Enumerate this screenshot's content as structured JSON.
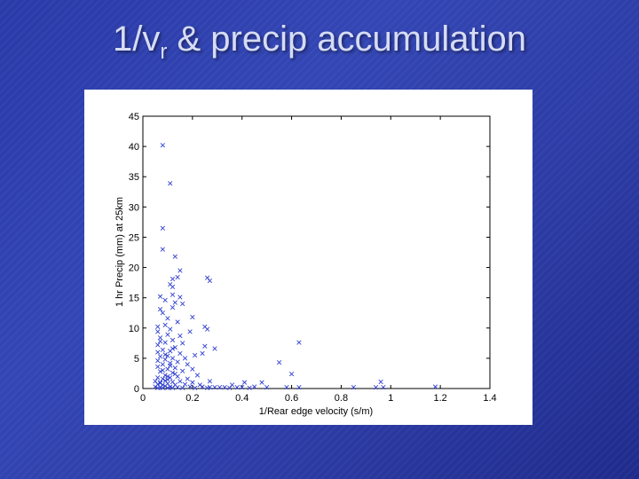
{
  "slide": {
    "title_main": "1/v",
    "title_sub": "r",
    "title_rest": " & precip accumulation"
  },
  "chart_data": {
    "type": "scatter",
    "xlabel": "1/Rear edge velocity (s/m)",
    "ylabel": "1 hr Precip (mm) at 25km",
    "xlim": [
      0,
      1.4
    ],
    "ylim": [
      0,
      45
    ],
    "xtick_labels": [
      "0",
      "0.2",
      "0.4",
      "0.6",
      "0.8",
      "1",
      "1.2",
      "1.4"
    ],
    "ytick_labels": [
      "0",
      "5",
      "10",
      "15",
      "20",
      "25",
      "30",
      "35",
      "40",
      "45"
    ],
    "marker": "x",
    "marker_color": "#2f3fd0",
    "grid": false,
    "points": [
      [
        0.08,
        40.2
      ],
      [
        0.11,
        33.9
      ],
      [
        0.08,
        26.5
      ],
      [
        0.08,
        23.0
      ],
      [
        0.13,
        21.8
      ],
      [
        0.15,
        19.5
      ],
      [
        0.26,
        18.3
      ],
      [
        0.27,
        17.8
      ],
      [
        0.12,
        18.1
      ],
      [
        0.14,
        18.4
      ],
      [
        0.11,
        17.2
      ],
      [
        0.12,
        16.8
      ],
      [
        0.07,
        15.2
      ],
      [
        0.12,
        15.5
      ],
      [
        0.15,
        15.1
      ],
      [
        0.09,
        14.6
      ],
      [
        0.13,
        14.2
      ],
      [
        0.07,
        13.1
      ],
      [
        0.12,
        13.4
      ],
      [
        0.16,
        14.0
      ],
      [
        0.08,
        12.5
      ],
      [
        0.1,
        11.6
      ],
      [
        0.2,
        11.8
      ],
      [
        0.14,
        11.0
      ],
      [
        0.06,
        10.2
      ],
      [
        0.09,
        10.5
      ],
      [
        0.25,
        10.2
      ],
      [
        0.26,
        9.8
      ],
      [
        0.06,
        9.4
      ],
      [
        0.11,
        9.8
      ],
      [
        0.15,
        8.7
      ],
      [
        0.07,
        8.4
      ],
      [
        0.1,
        8.9
      ],
      [
        0.19,
        9.4
      ],
      [
        0.12,
        8.0
      ],
      [
        0.16,
        7.5
      ],
      [
        0.06,
        7.2
      ],
      [
        0.09,
        7.6
      ],
      [
        0.63,
        7.6
      ],
      [
        0.25,
        7.0
      ],
      [
        0.13,
        6.8
      ],
      [
        0.08,
        6.4
      ],
      [
        0.11,
        6.2
      ],
      [
        0.29,
        6.6
      ],
      [
        0.06,
        6.0
      ],
      [
        0.15,
        5.8
      ],
      [
        0.1,
        5.4
      ],
      [
        0.24,
        5.8
      ],
      [
        0.07,
        5.3
      ],
      [
        0.12,
        5.0
      ],
      [
        0.17,
        5.0
      ],
      [
        0.21,
        5.5
      ],
      [
        0.06,
        4.6
      ],
      [
        0.09,
        4.8
      ],
      [
        0.14,
        4.4
      ],
      [
        0.55,
        4.3
      ],
      [
        0.08,
        4.0
      ],
      [
        0.11,
        3.8
      ],
      [
        0.18,
        4.0
      ],
      [
        0.06,
        3.6
      ],
      [
        0.1,
        3.2
      ],
      [
        0.13,
        3.4
      ],
      [
        0.2,
        3.2
      ],
      [
        0.07,
        2.8
      ],
      [
        0.12,
        2.6
      ],
      [
        0.16,
        2.9
      ],
      [
        0.6,
        2.4
      ],
      [
        0.09,
        2.2
      ],
      [
        0.14,
        2.0
      ],
      [
        0.22,
        2.2
      ],
      [
        0.06,
        1.8
      ],
      [
        0.08,
        1.6
      ],
      [
        0.11,
        1.8
      ],
      [
        0.18,
        1.6
      ],
      [
        0.05,
        1.2
      ],
      [
        0.07,
        1.0
      ],
      [
        0.09,
        1.3
      ],
      [
        0.12,
        1.1
      ],
      [
        0.15,
        1.2
      ],
      [
        0.2,
        1.0
      ],
      [
        0.27,
        1.2
      ],
      [
        0.41,
        1.0
      ],
      [
        0.48,
        1.0
      ],
      [
        0.96,
        1.1
      ],
      [
        0.06,
        0.7
      ],
      [
        0.08,
        0.6
      ],
      [
        0.1,
        0.8
      ],
      [
        0.13,
        0.6
      ],
      [
        0.17,
        0.7
      ],
      [
        0.23,
        0.6
      ],
      [
        0.36,
        0.6
      ],
      [
        0.05,
        0.3
      ],
      [
        0.07,
        0.2
      ],
      [
        0.09,
        0.4
      ],
      [
        0.11,
        0.3
      ],
      [
        0.14,
        0.2
      ],
      [
        0.19,
        0.3
      ],
      [
        0.24,
        0.3
      ],
      [
        0.27,
        0.2
      ],
      [
        0.29,
        0.2
      ],
      [
        0.31,
        0.2
      ],
      [
        0.33,
        0.2
      ],
      [
        0.38,
        0.2
      ],
      [
        0.4,
        0.2
      ],
      [
        0.45,
        0.3
      ],
      [
        0.5,
        0.2
      ],
      [
        0.58,
        0.2
      ],
      [
        0.63,
        0.2
      ],
      [
        0.85,
        0.2
      ],
      [
        0.94,
        0.2
      ],
      [
        0.97,
        0.2
      ],
      [
        1.18,
        0.3
      ],
      [
        0.06,
        0.1
      ],
      [
        0.08,
        0.1
      ],
      [
        0.1,
        0.1
      ],
      [
        0.12,
        0.1
      ],
      [
        0.16,
        0.1
      ],
      [
        0.21,
        0.1
      ],
      [
        0.26,
        0.1
      ],
      [
        0.35,
        0.1
      ],
      [
        0.43,
        0.1
      ],
      [
        0.07,
        0.9
      ],
      [
        0.1,
        1.5
      ],
      [
        0.13,
        2.4
      ],
      [
        0.08,
        3.0
      ],
      [
        0.11,
        4.2
      ],
      [
        0.09,
        5.6
      ],
      [
        0.12,
        6.6
      ],
      [
        0.07,
        7.8
      ],
      [
        0.1,
        2.0
      ]
    ]
  }
}
